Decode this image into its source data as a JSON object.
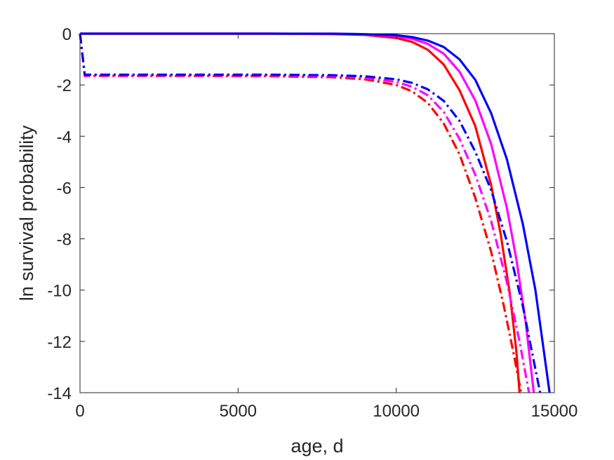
{
  "chart_data": {
    "type": "line",
    "title": "",
    "xlabel": "age, d",
    "ylabel": "ln survival probability",
    "xlim": [
      0,
      15000
    ],
    "ylim": [
      -14,
      0
    ],
    "xticks": [
      0,
      5000,
      10000,
      15000
    ],
    "yticks": [
      0,
      -2,
      -4,
      -6,
      -8,
      -10,
      -12,
      -14
    ],
    "xtick_labels": [
      "0",
      "5000",
      "10000",
      "15000"
    ],
    "ytick_labels": [
      "0",
      "-2",
      "-4",
      "-6",
      "-8",
      "-10",
      "-12",
      "-14"
    ],
    "grid": false,
    "legend": "none",
    "series": [
      {
        "color": "#ff0000",
        "style": "solid",
        "x": [
          0,
          2000,
          4000,
          6000,
          8000,
          9000,
          10000,
          10500,
          11000,
          11500,
          12000,
          12500,
          13000,
          13300,
          13600,
          13800,
          13900
        ],
        "y": [
          0,
          0,
          0,
          0,
          -0.02,
          -0.05,
          -0.17,
          -0.32,
          -0.63,
          -1.2,
          -2.2,
          -3.6,
          -5.9,
          -7.8,
          -10.2,
          -12.4,
          -14
        ]
      },
      {
        "color": "#ff00ff",
        "style": "solid",
        "x": [
          0,
          2000,
          4000,
          6000,
          8000,
          9000,
          10000,
          10500,
          11000,
          11500,
          12000,
          12500,
          13000,
          13500,
          13800,
          14100,
          14350
        ],
        "y": [
          0,
          0,
          0,
          0,
          -0.01,
          -0.03,
          -0.1,
          -0.2,
          -0.4,
          -0.78,
          -1.48,
          -2.6,
          -4.3,
          -6.8,
          -8.8,
          -11.3,
          -14
        ]
      },
      {
        "color": "#0000ff",
        "style": "solid",
        "x": [
          0,
          2000,
          4000,
          6000,
          8000,
          9000,
          10000,
          10500,
          11000,
          11500,
          12000,
          12500,
          13000,
          13500,
          14000,
          14400,
          14850
        ],
        "y": [
          0,
          0,
          0,
          0,
          0,
          -0.02,
          -0.06,
          -0.13,
          -0.27,
          -0.52,
          -1.0,
          -1.8,
          -3.1,
          -4.9,
          -7.4,
          -10.0,
          -14
        ]
      },
      {
        "color": "#ff0000",
        "style": "dashdot",
        "x": [
          0,
          150,
          2000,
          4000,
          6000,
          8000,
          9000,
          10000,
          10500,
          11000,
          11500,
          12000,
          12500,
          13000,
          13400,
          13700,
          13950
        ],
        "y": [
          0,
          -1.65,
          -1.65,
          -1.65,
          -1.66,
          -1.7,
          -1.78,
          -2.0,
          -2.25,
          -2.7,
          -3.5,
          -4.7,
          -6.4,
          -8.5,
          -10.6,
          -12.4,
          -14
        ]
      },
      {
        "color": "#ff00ff",
        "style": "dashdot",
        "x": [
          0,
          150,
          2000,
          4000,
          6000,
          8000,
          9000,
          10000,
          10500,
          11000,
          11500,
          12000,
          12500,
          13000,
          13500,
          13900,
          14200
        ],
        "y": [
          0,
          -1.63,
          -1.63,
          -1.63,
          -1.63,
          -1.66,
          -1.72,
          -1.88,
          -2.07,
          -2.4,
          -3.05,
          -4.1,
          -5.5,
          -7.3,
          -9.7,
          -12.0,
          -14
        ]
      },
      {
        "color": "#0000ff",
        "style": "dashdot",
        "x": [
          0,
          150,
          2000,
          4000,
          6000,
          8000,
          9000,
          10000,
          10500,
          11000,
          11500,
          12000,
          12500,
          13000,
          13500,
          14000,
          14550
        ],
        "y": [
          0,
          -1.6,
          -1.6,
          -1.6,
          -1.6,
          -1.62,
          -1.66,
          -1.78,
          -1.92,
          -2.17,
          -2.62,
          -3.4,
          -4.6,
          -6.1,
          -8.1,
          -10.6,
          -14
        ]
      }
    ]
  }
}
